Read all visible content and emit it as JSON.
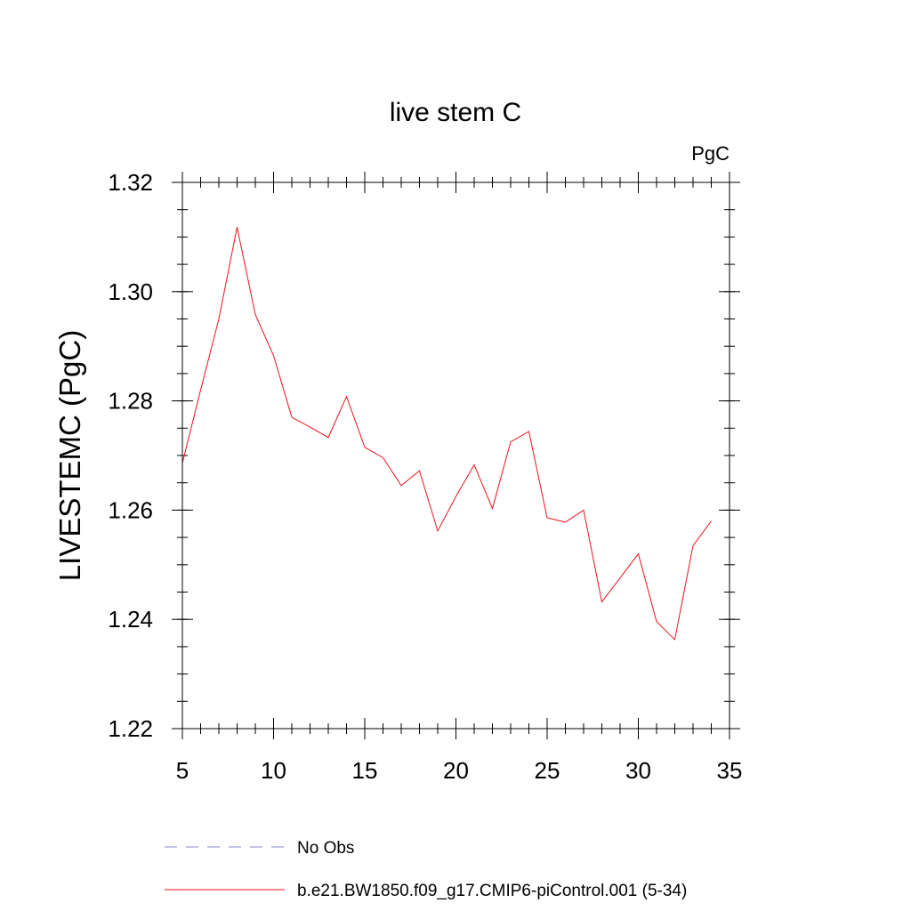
{
  "chart_data": {
    "type": "line",
    "title": "live stem C",
    "units": "PgC",
    "ylabel": "LIVESTEMC  (PgC)",
    "xlabel": "",
    "xlim": [
      5,
      35
    ],
    "ylim": [
      1.22,
      1.32
    ],
    "x_ticks": [
      5,
      10,
      15,
      20,
      25,
      30,
      35
    ],
    "y_ticks": [
      "1.22",
      "1.24",
      "1.26",
      "1.28",
      "1.30",
      "1.32"
    ],
    "x_minor_step": 1,
    "y_minor_step": 0.005,
    "series": [
      {
        "name": "b.e21.BW1850.f09_g17.CMIP6-piControl.001 (5-34)",
        "color": "#e8141c",
        "dash": "solid",
        "x": [
          5,
          6,
          7,
          8,
          9,
          10,
          11,
          12,
          13,
          14,
          15,
          16,
          17,
          18,
          19,
          20,
          21,
          22,
          23,
          24,
          25,
          26,
          27,
          28,
          29,
          30,
          31,
          32,
          33,
          34
        ],
        "values": [
          1.2686,
          1.282,
          1.295,
          1.3118,
          1.2958,
          1.2883,
          1.277,
          1.2752,
          1.2733,
          1.2808,
          1.2715,
          1.2696,
          1.2645,
          1.2672,
          1.2562,
          1.2625,
          1.2683,
          1.2603,
          1.2725,
          1.2744,
          1.2586,
          1.2578,
          1.26,
          1.2432,
          1.2476,
          1.252,
          1.2396,
          1.2363,
          1.2535,
          1.258
        ]
      }
    ],
    "legend": {
      "placement": "bottom",
      "entries": [
        {
          "label": "No Obs",
          "color": "#8a8ad0",
          "dash": "dashed"
        },
        {
          "label": "b.e21.BW1850.f09_g17.CMIP6-piControl.001 (5-34)",
          "color": "#e8141c",
          "dash": "solid"
        }
      ]
    }
  }
}
